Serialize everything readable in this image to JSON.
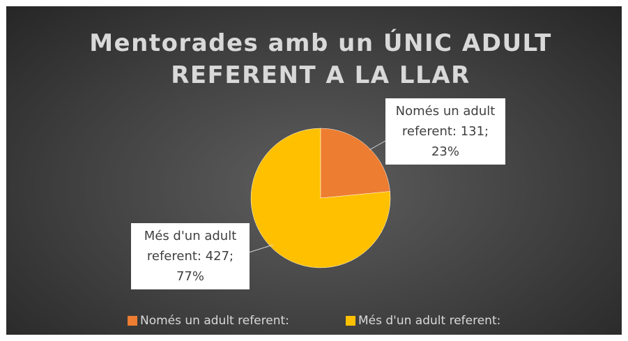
{
  "chart_data": {
    "type": "pie",
    "title": "Mentorades amb un ÚNIC ADULT REFERENT A LA LLAR",
    "categories": [
      "Només un adult referent:",
      "Més d'un adult referent:"
    ],
    "values": [
      131,
      427
    ],
    "value_labels": [
      "Només un adult referent: 131; 23%",
      "Més d'un adult referent: 427; 77%"
    ],
    "colors": [
      "#ed7d31",
      "#ffc000"
    ],
    "legend": "bottom"
  }
}
